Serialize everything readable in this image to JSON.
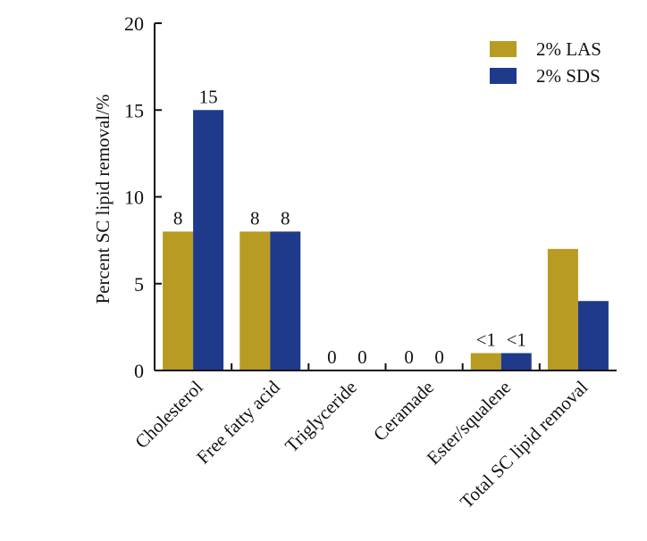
{
  "chart_data": {
    "type": "bar",
    "title": "",
    "xlabel": "",
    "ylabel": "Percent SC lipid removal/%",
    "ylim": [
      0,
      20
    ],
    "yticks": [
      0,
      5,
      10,
      15,
      20
    ],
    "grid": false,
    "legend_position": "top-right",
    "categories": [
      "Cholesterol",
      "Free fatty acid",
      "Triglyceride",
      "Ceramade",
      "Ester/squalene",
      "Total SC lipid removal"
    ],
    "series": [
      {
        "name": "2% LAS",
        "color": "#B89B22",
        "values": [
          8,
          8,
          0,
          0,
          1,
          7
        ],
        "labels": [
          "8",
          "8",
          "0",
          "0",
          "<1",
          ""
        ]
      },
      {
        "name": "2% SDS",
        "color": "#1F3A8A",
        "values": [
          15,
          8,
          0,
          0,
          1,
          4
        ],
        "labels": [
          "15",
          "8",
          "0",
          "0",
          "<1",
          ""
        ]
      }
    ]
  }
}
